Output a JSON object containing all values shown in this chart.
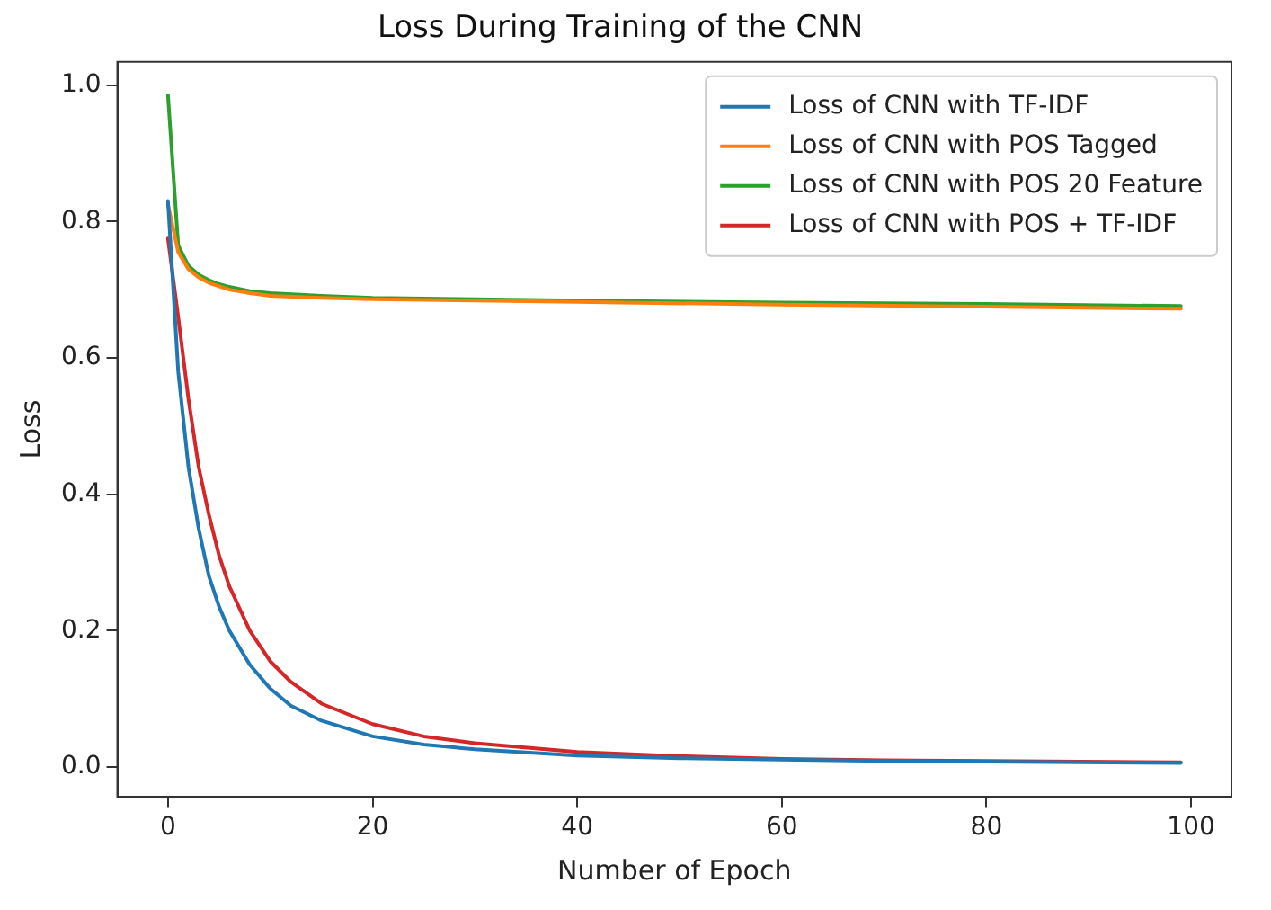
{
  "chart_data": {
    "type": "line",
    "title": "Loss During Training of the CNN",
    "xlabel": "Number of Epoch",
    "ylabel": "Loss",
    "xlim": [
      -4.95,
      103.95
    ],
    "xticks": [
      0,
      20,
      40,
      60,
      80,
      100
    ],
    "ylim": [
      -0.044,
      1.034
    ],
    "yticks": [
      {
        "value": 0,
        "label": "0.0"
      },
      0.2,
      0.4,
      0.6,
      0.8,
      {
        "value": 1,
        "label": "1.0"
      }
    ],
    "grid": false,
    "legend": "top right",
    "marker": "none",
    "line_style": "solid",
    "series": [
      {
        "name": "Loss of CNN with TF-IDF",
        "color": "#1f77b4",
        "x": [
          0,
          1,
          2,
          3,
          4,
          5,
          6,
          8,
          10,
          12,
          15,
          20,
          25,
          30,
          40,
          50,
          60,
          70,
          80,
          99
        ],
        "values": [
          0.83,
          0.58,
          0.44,
          0.35,
          0.28,
          0.235,
          0.2,
          0.15,
          0.115,
          0.09,
          0.068,
          0.045,
          0.033,
          0.026,
          0.017,
          0.013,
          0.011,
          0.009,
          0.008,
          0.006
        ]
      },
      {
        "name": "Loss of CNN with POS Tagged",
        "color": "#ff7f0e",
        "x": [
          0,
          1,
          2,
          3,
          4,
          5,
          6,
          8,
          10,
          15,
          20,
          30,
          40,
          60,
          80,
          99
        ],
        "values": [
          0.825,
          0.755,
          0.73,
          0.718,
          0.71,
          0.705,
          0.7,
          0.695,
          0.691,
          0.688,
          0.686,
          0.684,
          0.682,
          0.678,
          0.675,
          0.672
        ]
      },
      {
        "name": "Loss of CNN with POS 20 Feature",
        "color": "#2ca02c",
        "x": [
          0,
          1,
          2,
          3,
          4,
          5,
          6,
          8,
          10,
          15,
          20,
          30,
          40,
          60,
          80,
          99
        ],
        "values": [
          0.985,
          0.765,
          0.735,
          0.722,
          0.714,
          0.708,
          0.704,
          0.698,
          0.695,
          0.691,
          0.688,
          0.686,
          0.684,
          0.681,
          0.679,
          0.676
        ]
      },
      {
        "name": "Loss of CNN with POS + TF-IDF",
        "color": "#d62728",
        "x": [
          0,
          1,
          2,
          3,
          4,
          5,
          6,
          8,
          10,
          12,
          15,
          20,
          25,
          30,
          40,
          50,
          60,
          70,
          80,
          99
        ],
        "values": [
          0.775,
          0.66,
          0.54,
          0.44,
          0.37,
          0.31,
          0.265,
          0.2,
          0.155,
          0.125,
          0.093,
          0.063,
          0.045,
          0.035,
          0.022,
          0.016,
          0.012,
          0.01,
          0.009,
          0.007
        ]
      }
    ]
  }
}
